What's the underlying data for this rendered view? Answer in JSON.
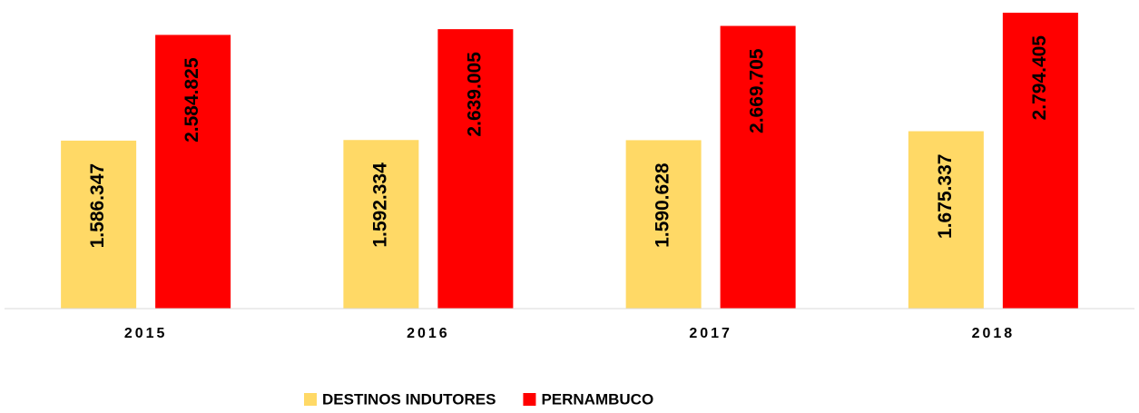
{
  "chart_data": {
    "type": "bar",
    "categories": [
      "2015",
      "2016",
      "2017",
      "2018"
    ],
    "series": [
      {
        "name": "DESTINOS INDUTORES",
        "color": "#ffd966",
        "values": [
          1586347,
          1592334,
          1590628,
          1675337
        ],
        "value_labels": [
          "1.586.347",
          "1.592.334",
          "1.590.628",
          "1.675.337"
        ]
      },
      {
        "name": "PERNAMBUCO",
        "color": "#ff0000",
        "values": [
          2584825,
          2639005,
          2669705,
          2794405
        ],
        "value_labels": [
          "2.584.825",
          "2.639.005",
          "2.669.705",
          "2.794.405"
        ]
      }
    ],
    "legend": "bottom"
  }
}
